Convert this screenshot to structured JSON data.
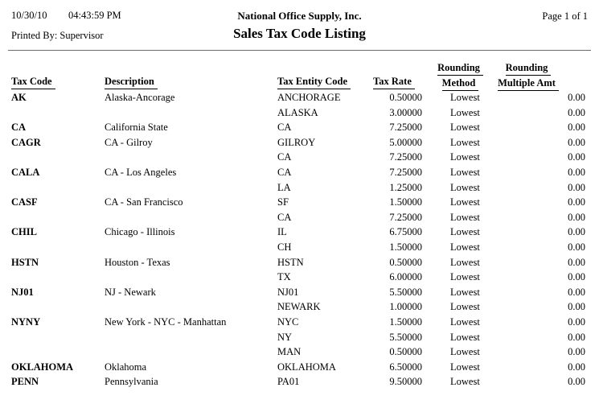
{
  "header": {
    "date": "10/30/10",
    "time": "04:43:59 PM",
    "printed_by": "Printed By: Supervisor",
    "company": "National Office Supply, Inc.",
    "title": "Sales Tax Code Listing",
    "page": "Page 1 of 1"
  },
  "table": {
    "columns": {
      "tax_code": "Tax Code",
      "description": "Description",
      "tax_entity_code": "Tax Entity Code",
      "tax_rate": "Tax Rate",
      "rounding_method": [
        "Rounding",
        "Method"
      ],
      "rounding_multiple_amt": [
        "Rounding",
        "Multiple Amt"
      ]
    },
    "groups": [
      {
        "tax_code": "AK",
        "description": "Alaska-Ancorage",
        "entities": [
          {
            "code": "ANCHORAGE",
            "rate": "0.50000",
            "method": "Lowest",
            "multiple": "0.00"
          },
          {
            "code": "ALASKA",
            "rate": "3.00000",
            "method": "Lowest",
            "multiple": "0.00"
          }
        ]
      },
      {
        "tax_code": "CA",
        "description": "California State",
        "entities": [
          {
            "code": "CA",
            "rate": "7.25000",
            "method": "Lowest",
            "multiple": "0.00"
          }
        ]
      },
      {
        "tax_code": "CAGR",
        "description": "CA - Gilroy",
        "entities": [
          {
            "code": "GILROY",
            "rate": "5.00000",
            "method": "Lowest",
            "multiple": "0.00"
          },
          {
            "code": "CA",
            "rate": "7.25000",
            "method": "Lowest",
            "multiple": "0.00"
          }
        ]
      },
      {
        "tax_code": "CALA",
        "description": "CA - Los Angeles",
        "entities": [
          {
            "code": "CA",
            "rate": "7.25000",
            "method": "Lowest",
            "multiple": "0.00"
          },
          {
            "code": "LA",
            "rate": "1.25000",
            "method": "Lowest",
            "multiple": "0.00"
          }
        ]
      },
      {
        "tax_code": "CASF",
        "description": "CA - San Francisco",
        "entities": [
          {
            "code": "SF",
            "rate": "1.50000",
            "method": "Lowest",
            "multiple": "0.00"
          },
          {
            "code": "CA",
            "rate": "7.25000",
            "method": "Lowest",
            "multiple": "0.00"
          }
        ]
      },
      {
        "tax_code": "CHIL",
        "description": "Chicago - Illinois",
        "entities": [
          {
            "code": "IL",
            "rate": "6.75000",
            "method": "Lowest",
            "multiple": "0.00"
          },
          {
            "code": "CH",
            "rate": "1.50000",
            "method": "Lowest",
            "multiple": "0.00"
          }
        ]
      },
      {
        "tax_code": "HSTN",
        "description": "Houston - Texas",
        "entities": [
          {
            "code": "HSTN",
            "rate": "0.50000",
            "method": "Lowest",
            "multiple": "0.00"
          },
          {
            "code": "TX",
            "rate": "6.00000",
            "method": "Lowest",
            "multiple": "0.00"
          }
        ]
      },
      {
        "tax_code": "NJ01",
        "description": "NJ - Newark",
        "entities": [
          {
            "code": "NJ01",
            "rate": "5.50000",
            "method": "Lowest",
            "multiple": "0.00"
          },
          {
            "code": "NEWARK",
            "rate": "1.00000",
            "method": "Lowest",
            "multiple": "0.00"
          }
        ]
      },
      {
        "tax_code": "NYNY",
        "description": "New York - NYC - Manhattan",
        "entities": [
          {
            "code": "NYC",
            "rate": "1.50000",
            "method": "Lowest",
            "multiple": "0.00"
          },
          {
            "code": "NY",
            "rate": "5.50000",
            "method": "Lowest",
            "multiple": "0.00"
          },
          {
            "code": "MAN",
            "rate": "0.50000",
            "method": "Lowest",
            "multiple": "0.00"
          }
        ]
      },
      {
        "tax_code": "OKLAHOMA",
        "description": "Oklahoma",
        "entities": [
          {
            "code": "OKLAHOMA",
            "rate": "6.50000",
            "method": "Lowest",
            "multiple": "0.00"
          }
        ]
      },
      {
        "tax_code": "PENN",
        "description": "Pennsylvania",
        "entities": [
          {
            "code": "PA01",
            "rate": "9.50000",
            "method": "Lowest",
            "multiple": "0.00"
          }
        ]
      }
    ]
  },
  "colors": {
    "text": "#000000",
    "rule": "#6b6b6b",
    "background": "#ffffff"
  }
}
